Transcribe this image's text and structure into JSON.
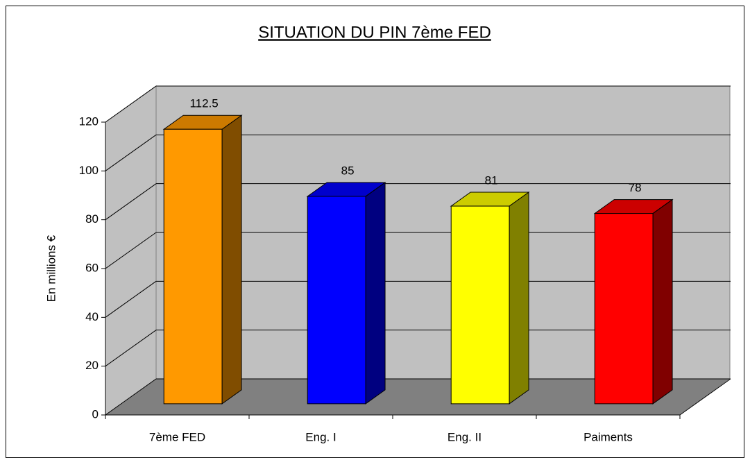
{
  "chart_data": {
    "type": "bar",
    "title": "SITUATION DU PIN 7ème FED",
    "y_label": "En millions €",
    "categories": [
      "7ème FED",
      "Eng. I",
      "Eng. II",
      "Paiments"
    ],
    "values": [
      112.5,
      85,
      81,
      78
    ],
    "colors": [
      "#ff9900",
      "#0000ff",
      "#ffff00",
      "#ff0000"
    ],
    "ylim": [
      0,
      120
    ],
    "yticks": [
      0,
      20,
      40,
      60,
      80,
      100,
      120
    ],
    "grid": true
  }
}
